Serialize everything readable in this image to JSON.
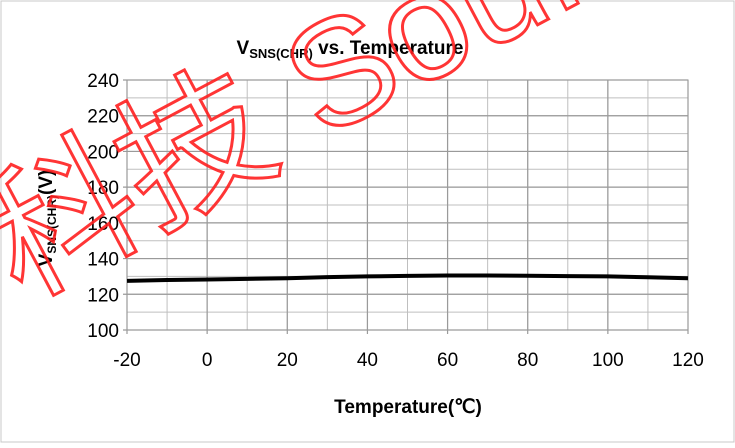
{
  "chart_data": {
    "type": "line",
    "title": {
      "main": "V",
      "sub": "SNS(CHR)",
      "rest": " vs. Temperature"
    },
    "xlabel": "Temperature(℃)",
    "ylabel": {
      "main": "V",
      "sub": "SNS(CHR)",
      "rest": "(V)"
    },
    "xlim": [
      -20,
      120
    ],
    "ylim": [
      100,
      240
    ],
    "x_major_ticks": [
      -20,
      0,
      20,
      40,
      60,
      80,
      100,
      120
    ],
    "x_tick_labels": [
      "-20",
      "0",
      "20",
      "40",
      "60",
      "80",
      "100",
      "120"
    ],
    "x_minor_step": 10,
    "y_major_ticks": [
      100,
      120,
      140,
      160,
      180,
      200,
      220,
      240
    ],
    "y_tick_labels": [
      "100",
      "120",
      "140",
      "160",
      "180",
      "200",
      "220",
      "240"
    ],
    "y_minor_step": 10,
    "grid": true,
    "legend": "none",
    "colors": {
      "line": "#000000",
      "grid": "#bfbfbf",
      "watermark": "#ff0000"
    },
    "series": [
      {
        "x": [
          -20,
          -10,
          0,
          10,
          20,
          30,
          40,
          50,
          60,
          70,
          80,
          90,
          100,
          110,
          120
        ],
        "y": [
          127.5,
          128,
          128.3,
          128.6,
          129,
          129.6,
          130,
          130.3,
          130.5,
          130.5,
          130.4,
          130.2,
          130,
          129.5,
          129
        ]
      }
    ]
  },
  "watermark": {
    "text": "科技 SourceTek"
  }
}
